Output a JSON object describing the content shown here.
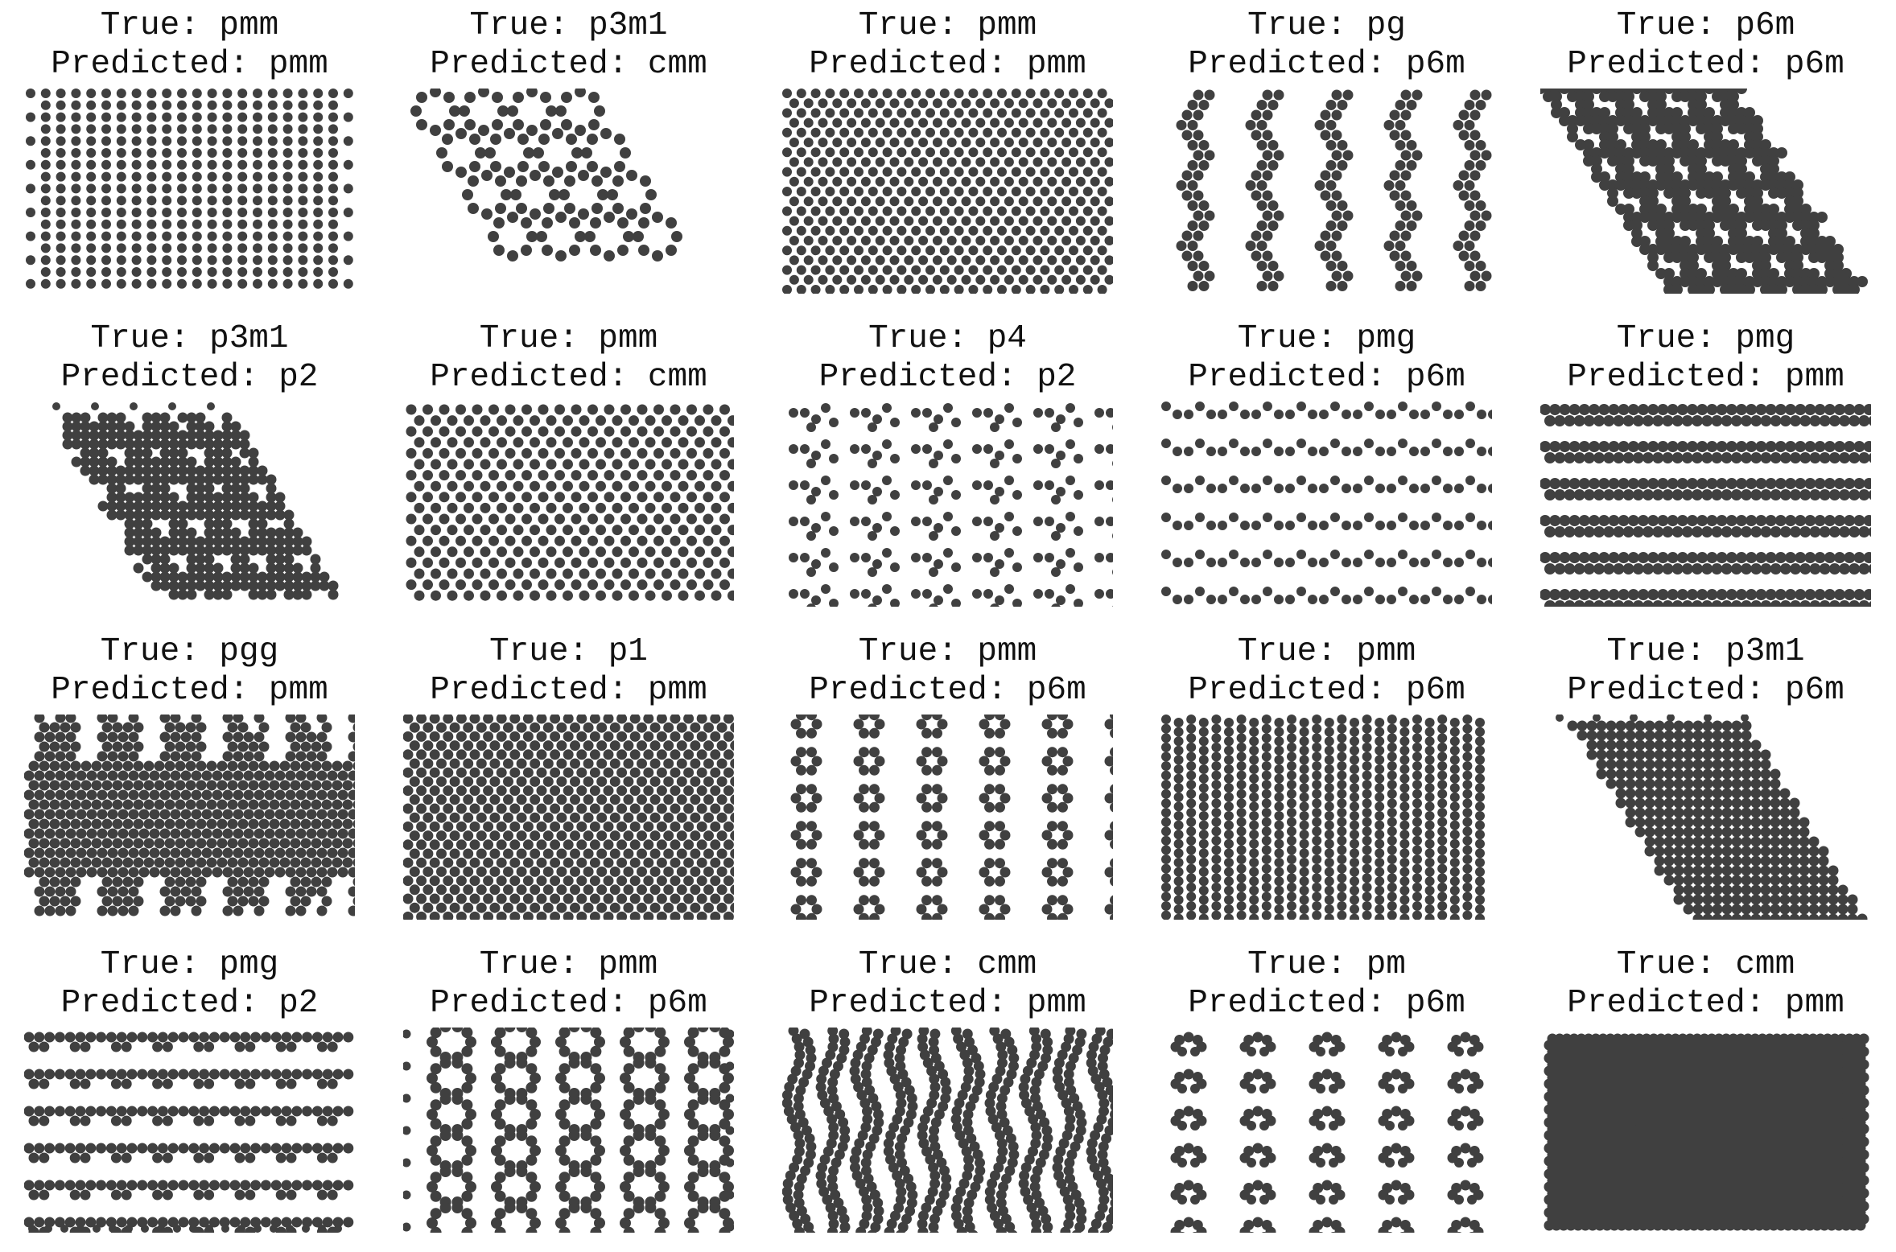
{
  "panel_color": "#404040",
  "panels": [
    {
      "true_label": "True: pmm",
      "pred_label": "Predicted: pmm",
      "pattern": "rect-dense-columns"
    },
    {
      "true_label": "True: p3m1",
      "pred_label": "Predicted: cmm",
      "pattern": "parallelogram-rings"
    },
    {
      "true_label": "True: pmm",
      "pred_label": "Predicted: pmm",
      "pattern": "hex-dots"
    },
    {
      "true_label": "True: pg",
      "pred_label": "Predicted: p6m",
      "pattern": "zigzag-columns"
    },
    {
      "true_label": "True: p6m",
      "pred_label": "Predicted: p6m",
      "pattern": "parallelogram-dense-rings"
    },
    {
      "true_label": "True: p3m1",
      "pred_label": "Predicted: p2",
      "pattern": "parallelogram-triangles"
    },
    {
      "true_label": "True: pmm",
      "pred_label": "Predicted: cmm",
      "pattern": "hex-dots-sparse"
    },
    {
      "true_label": "True: p4",
      "pred_label": "Predicted: p2",
      "pattern": "motif-grid"
    },
    {
      "true_label": "True: pmg",
      "pred_label": "Predicted: p6m",
      "pattern": "row-bands-sparse"
    },
    {
      "true_label": "True: pmg",
      "pred_label": "Predicted: pmm",
      "pattern": "row-bands-dense"
    },
    {
      "true_label": "True: pgg",
      "pred_label": "Predicted: pmm",
      "pattern": "diamond-lattice"
    },
    {
      "true_label": "True: p1",
      "pred_label": "Predicted: pmm",
      "pattern": "hex-dots-fine"
    },
    {
      "true_label": "True: pmm",
      "pred_label": "Predicted: p6m",
      "pattern": "flower-grid"
    },
    {
      "true_label": "True: pmm",
      "pred_label": "Predicted: p6m",
      "pattern": "rect-columns"
    },
    {
      "true_label": "True: p3m1",
      "pred_label": "Predicted: p6m",
      "pattern": "parallelogram-stars"
    },
    {
      "true_label": "True: pmg",
      "pred_label": "Predicted: p2",
      "pattern": "row-pairs"
    },
    {
      "true_label": "True: pmm",
      "pred_label": "Predicted: p6m",
      "pattern": "column-rings"
    },
    {
      "true_label": "True: cmm",
      "pred_label": "Predicted: pmm",
      "pattern": "wavy-columns"
    },
    {
      "true_label": "True: pm",
      "pred_label": "Predicted: p6m",
      "pattern": "arc-clusters"
    },
    {
      "true_label": "True: cmm",
      "pred_label": "Predicted: pmm",
      "pattern": "dense-block"
    }
  ]
}
